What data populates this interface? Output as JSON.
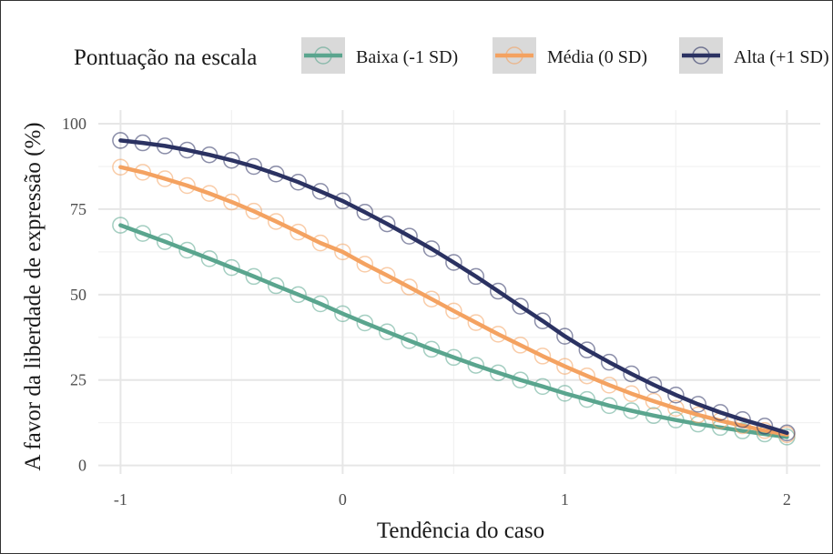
{
  "chart_data": {
    "type": "line",
    "title": "",
    "xlabel": "Tendência do caso",
    "ylabel": "A favor da liberdade de expressão (%)",
    "xlim": [
      -1.1,
      2.15
    ],
    "ylim": [
      -2.5,
      104
    ],
    "x_ticks": [
      -1,
      0,
      1,
      2
    ],
    "x_tick_labels": [
      "-1",
      "0",
      "1",
      "2"
    ],
    "y_ticks": [
      0,
      25,
      50,
      75,
      100
    ],
    "y_tick_labels": [
      "0",
      "25",
      "50",
      "75",
      "100"
    ],
    "grid": true,
    "legend": {
      "title": "Pontuação na escala",
      "position": "top"
    },
    "x": [
      -1.0,
      -0.9,
      -0.8,
      -0.7,
      -0.6,
      -0.5,
      -0.4,
      -0.3,
      -0.2,
      -0.1,
      0.0,
      0.1,
      0.2,
      0.3,
      0.4,
      0.5,
      0.6,
      0.7,
      0.8,
      0.9,
      1.0,
      1.1,
      1.2,
      1.3,
      1.4,
      1.5,
      1.6,
      1.7,
      1.8,
      1.9,
      2.0
    ],
    "series": [
      {
        "name": "Baixa (-1 SD)",
        "color": "#5aa58e",
        "values": [
          70.3,
          67.9,
          65.5,
          63.0,
          60.5,
          57.9,
          55.3,
          52.6,
          50.0,
          47.3,
          44.4,
          41.7,
          39.1,
          36.5,
          34.0,
          31.6,
          29.3,
          27.1,
          25.0,
          23.1,
          21.1,
          19.3,
          17.5,
          16.0,
          14.6,
          13.3,
          12.1,
          11.1,
          10.1,
          9.2,
          8.3
        ]
      },
      {
        "name": "Média (0 SD)",
        "color": "#f4a261",
        "values": [
          87.3,
          85.8,
          83.9,
          81.9,
          79.6,
          77.1,
          74.4,
          71.4,
          68.3,
          65.1,
          62.5,
          58.9,
          55.6,
          52.2,
          48.7,
          45.2,
          41.8,
          38.4,
          35.2,
          32.0,
          29.0,
          26.2,
          23.5,
          21.0,
          18.8,
          16.7,
          14.8,
          13.1,
          11.6,
          10.2,
          9.0
        ]
      },
      {
        "name": "Alta (+1 SD)",
        "color": "#2b3262",
        "values": [
          95.1,
          94.4,
          93.5,
          92.3,
          90.9,
          89.3,
          87.5,
          85.3,
          82.9,
          80.2,
          77.4,
          74.1,
          70.7,
          67.1,
          63.4,
          59.4,
          55.3,
          51.0,
          46.6,
          42.3,
          37.8,
          33.8,
          30.2,
          26.8,
          23.6,
          20.6,
          17.9,
          15.5,
          13.4,
          11.5,
          9.5
        ]
      }
    ]
  }
}
